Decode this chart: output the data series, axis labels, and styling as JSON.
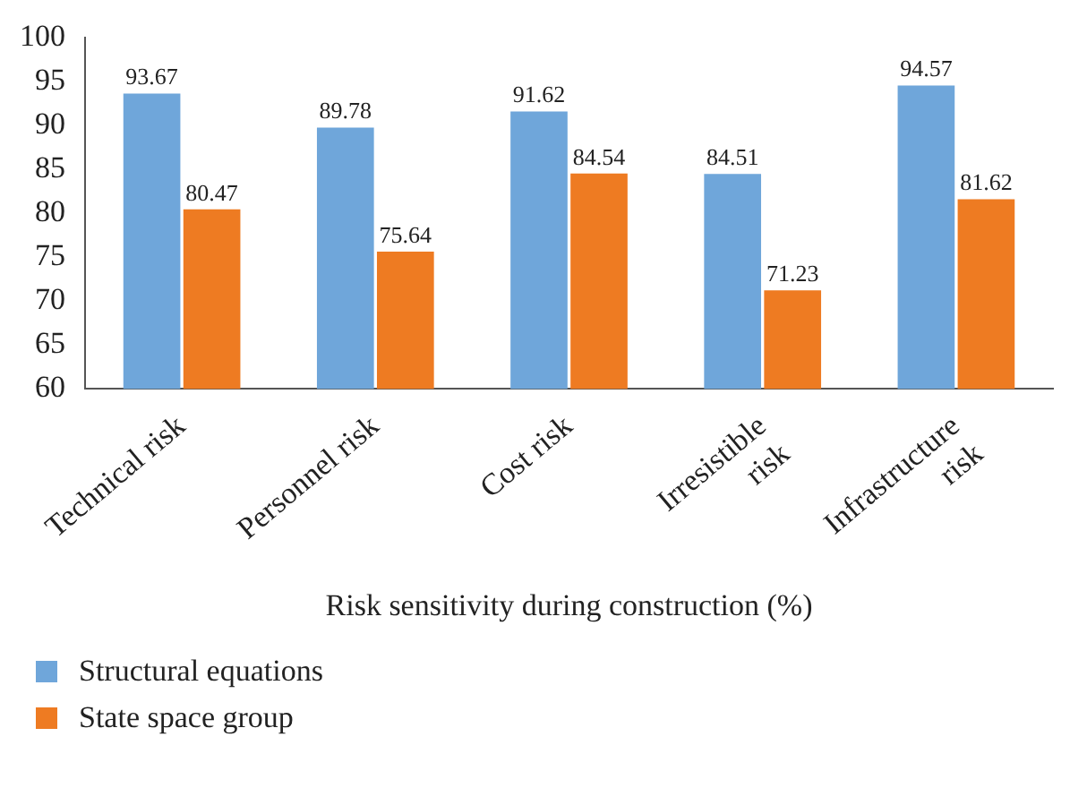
{
  "chart_data": {
    "type": "bar",
    "xlabel": "Risk sensitivity during construction (%)",
    "categories": [
      "Technical risk",
      "Personnel risk",
      "Cost risk",
      "Irresistible risk",
      "Infrastructure risk"
    ],
    "series": [
      {
        "name": "Structural equations",
        "color": "#6fa6da",
        "values": [
          93.67,
          89.78,
          91.62,
          84.51,
          94.57
        ]
      },
      {
        "name": "State space group",
        "color": "#ee7b22",
        "values": [
          80.47,
          75.64,
          84.54,
          71.23,
          81.62
        ]
      }
    ],
    "ylim": [
      60,
      100
    ],
    "yticks": [
      60,
      65,
      70,
      75,
      80,
      85,
      90,
      95,
      100
    ],
    "grid": false,
    "legend": "bottom left",
    "data_labels": true
  }
}
